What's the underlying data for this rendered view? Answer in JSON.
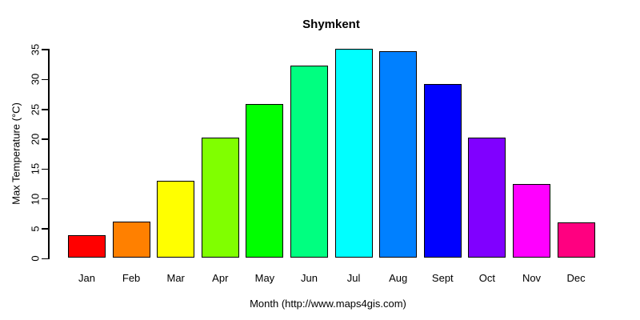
{
  "chart_data": {
    "type": "bar",
    "title": "Shymkent",
    "xlabel": "Month (http://www.maps4gis.com)",
    "ylabel": "Max Temperature (°C)",
    "categories": [
      "Jan",
      "Feb",
      "Mar",
      "Apr",
      "May",
      "Jun",
      "Jul",
      "Aug",
      "Sept",
      "Oct",
      "Nov",
      "Dec"
    ],
    "values": [
      3.8,
      6.1,
      12.9,
      20.2,
      25.8,
      32.2,
      35.1,
      34.6,
      29.1,
      20.2,
      12.4,
      6.0
    ],
    "bar_colors": [
      "#FF0000",
      "#FF8000",
      "#FFFF00",
      "#80FF00",
      "#00FF00",
      "#00FF80",
      "#00FFFF",
      "#0080FF",
      "#0000FF",
      "#8000FF",
      "#FF00FF",
      "#FF0080"
    ],
    "bar_border_color": "#000000",
    "ylim": [
      0,
      35
    ],
    "yticks": [
      0,
      5,
      10,
      15,
      20,
      25,
      30,
      35
    ],
    "grid": false,
    "legend": "none",
    "background": "#FFFFFF",
    "text_color": "#000000"
  }
}
